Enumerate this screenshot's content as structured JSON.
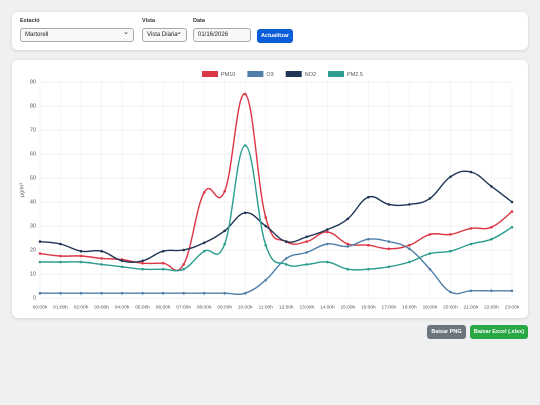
{
  "controls": {
    "station": {
      "label": "Estació",
      "value": "Martorell"
    },
    "view": {
      "label": "Vista",
      "value": "Vista Diària"
    },
    "date": {
      "label": "Data",
      "value": "01/16/2026"
    },
    "update_button": "Actualitzar"
  },
  "chart_data": {
    "type": "line",
    "y_label": "µg/m³",
    "categories": [
      "00:00h",
      "01:00h",
      "02:00h",
      "03:00h",
      "04:00h",
      "05:00h",
      "06:00h",
      "07:00h",
      "08:00h",
      "09:00h",
      "10:00h",
      "11:00h",
      "12:00h",
      "13:00h",
      "14:00h",
      "15:00h",
      "16:00h",
      "17:00h",
      "18:00h",
      "19:00h",
      "20:00h",
      "21:00h",
      "22:00h",
      "23:00h"
    ],
    "series": [
      {
        "name": "PM10",
        "color": "#dc3545",
        "values": [
          18.5,
          17.5,
          17.5,
          16.5,
          16,
          14.5,
          14.5,
          14,
          44,
          44.5,
          85,
          33.5,
          23.5,
          23.5,
          27.5,
          22.5,
          22,
          20.5,
          22,
          26.5,
          26.5,
          29,
          29.5,
          36
        ]
      },
      {
        "name": "O3",
        "color": "#4f7ea8",
        "values": [
          2,
          2,
          2,
          2,
          2,
          2,
          2,
          2,
          2,
          2,
          2,
          7.5,
          16.5,
          19,
          22.5,
          21.5,
          24.5,
          23.5,
          20.5,
          12,
          2.5,
          3,
          3,
          3
        ]
      },
      {
        "name": "NO2",
        "color": "#203555",
        "values": [
          23.5,
          22.5,
          19.5,
          19.5,
          15.5,
          15.5,
          19.5,
          20,
          23,
          28,
          35.5,
          30,
          23.5,
          25.5,
          28.5,
          33,
          42,
          39,
          39,
          41.5,
          50.5,
          52.5,
          46.5,
          40
        ]
      },
      {
        "name": "PM2.5",
        "color": "#2a9d8f",
        "values": [
          15,
          15,
          15,
          14,
          13,
          12,
          12,
          12,
          19.5,
          22.5,
          63.5,
          22,
          14,
          14,
          15,
          12,
          12,
          13,
          15,
          18.5,
          19.5,
          22.5,
          24.5,
          29.5
        ]
      }
    ],
    "ylim": [
      0,
      90
    ],
    "yticks": [
      0,
      10,
      20,
      30,
      40,
      50,
      60,
      70,
      80,
      90
    ],
    "grid": true,
    "legend": "top"
  },
  "downloads": {
    "png": "Baixar PNG",
    "excel": "Baixar Excel (.xlsx)"
  }
}
